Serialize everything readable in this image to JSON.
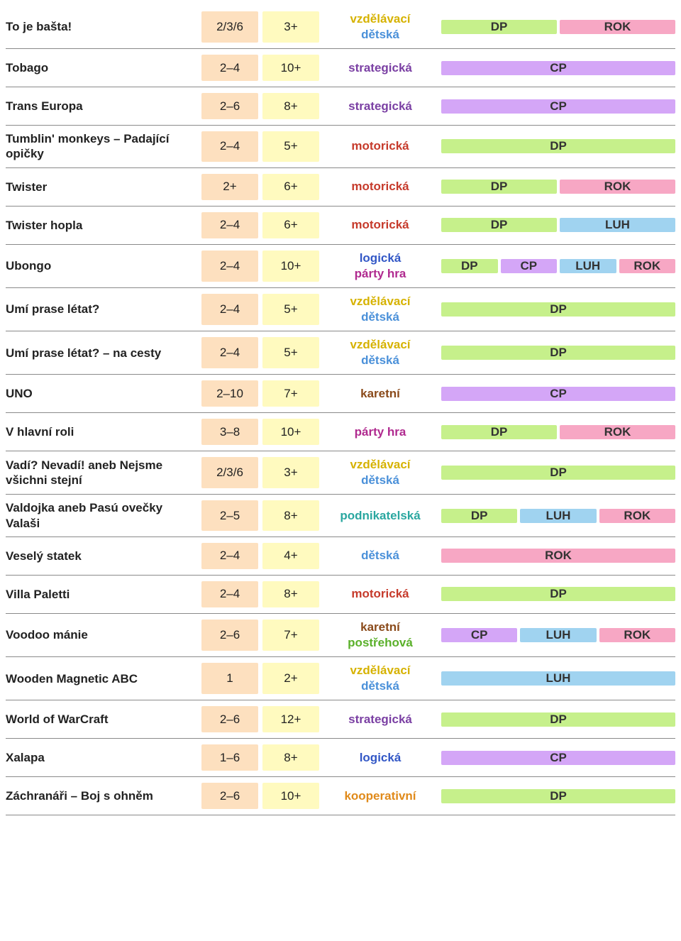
{
  "colors": {
    "bg_players": "#fde0bf",
    "bg_age": "#fffabf",
    "loc_bg": {
      "DP": "#c6f08b",
      "CP": "#d4a6f7",
      "LUH": "#a0d3f0",
      "ROK": "#f7a7c4"
    },
    "cat_color": {
      "vzdělávací": "#d6b200",
      "dětská": "#4a90d9",
      "strategická": "#7a3fa3",
      "motorická": "#c63a2b",
      "logická": "#3257c6",
      "párty hra": "#b02a8f",
      "karetní": "#8a4a1a",
      "podnikatelská": "#2aa7a0",
      "postřehová": "#5ab02a",
      "kooperativní": "#e08a1a"
    }
  },
  "rows": [
    {
      "name": "To je bašta!",
      "players": "2/3/6",
      "age": "3+",
      "cats": [
        "vzdělávací",
        "dětská"
      ],
      "locs": [
        "DP",
        "ROK"
      ]
    },
    {
      "name": "Tobago",
      "players": "2–4",
      "age": "10+",
      "cats": [
        "strategická"
      ],
      "locs": [
        "CP"
      ]
    },
    {
      "name": "Trans Europa",
      "players": "2–6",
      "age": "8+",
      "cats": [
        "strategická"
      ],
      "locs": [
        "CP"
      ]
    },
    {
      "name": "Tumblin' monkeys – Padající opičky",
      "players": "2–4",
      "age": "5+",
      "cats": [
        "motorická"
      ],
      "locs": [
        "DP"
      ]
    },
    {
      "name": "Twister",
      "players": "2+",
      "age": "6+",
      "cats": [
        "motorická"
      ],
      "locs": [
        "DP",
        "ROK"
      ]
    },
    {
      "name": "Twister hopla",
      "players": "2–4",
      "age": "6+",
      "cats": [
        "motorická"
      ],
      "locs": [
        "DP",
        "LUH"
      ]
    },
    {
      "name": "Ubongo",
      "players": "2–4",
      "age": "10+",
      "cats": [
        "logická",
        "párty hra"
      ],
      "locs": [
        "DP",
        "CP",
        "LUH",
        "ROK"
      ]
    },
    {
      "name": "Umí prase létat?",
      "players": "2–4",
      "age": "5+",
      "cats": [
        "vzdělávací",
        "dětská"
      ],
      "locs": [
        "DP"
      ]
    },
    {
      "name": "Umí prase létat? – na cesty",
      "players": "2–4",
      "age": "5+",
      "cats": [
        "vzdělávací",
        "dětská"
      ],
      "locs": [
        "DP"
      ]
    },
    {
      "name": "UNO",
      "players": "2–10",
      "age": "7+",
      "cats": [
        "karetní"
      ],
      "locs": [
        "CP"
      ]
    },
    {
      "name": "V hlavní roli",
      "players": "3–8",
      "age": "10+",
      "cats": [
        "párty hra"
      ],
      "locs": [
        "DP",
        "ROK"
      ]
    },
    {
      "name": "Vadí? Nevadí! aneb Nejsme všichni stejní",
      "players": "2/3/6",
      "age": "3+",
      "cats": [
        "vzdělávací",
        "dětská"
      ],
      "locs": [
        "DP"
      ]
    },
    {
      "name": "Valdojka aneb Pasú ovečky Valaši",
      "players": "2–5",
      "age": "8+",
      "cats": [
        "podnikatelská"
      ],
      "locs": [
        "DP",
        "LUH",
        "ROK"
      ]
    },
    {
      "name": "Veselý statek",
      "players": "2–4",
      "age": "4+",
      "cats": [
        "dětská"
      ],
      "locs": [
        "ROK"
      ]
    },
    {
      "name": "Villa Paletti",
      "players": "2–4",
      "age": "8+",
      "cats": [
        "motorická"
      ],
      "locs": [
        "DP"
      ]
    },
    {
      "name": "Voodoo mánie",
      "players": "2–6",
      "age": "7+",
      "cats": [
        "karetní",
        "postřehová"
      ],
      "locs": [
        "CP",
        "LUH",
        "ROK"
      ]
    },
    {
      "name": "Wooden Magnetic ABC",
      "players": "1",
      "age": "2+",
      "cats": [
        "vzdělávací",
        "dětská"
      ],
      "locs": [
        "LUH"
      ]
    },
    {
      "name": "World of WarCraft",
      "players": "2–6",
      "age": "12+",
      "cats": [
        "strategická"
      ],
      "locs": [
        "DP"
      ]
    },
    {
      "name": "Xalapa",
      "players": "1–6",
      "age": "8+",
      "cats": [
        "logická"
      ],
      "locs": [
        "CP"
      ]
    },
    {
      "name": "Záchranáři – Boj s ohněm",
      "players": "2–6",
      "age": "10+",
      "cats": [
        "kooperativní"
      ],
      "locs": [
        "DP"
      ]
    }
  ]
}
